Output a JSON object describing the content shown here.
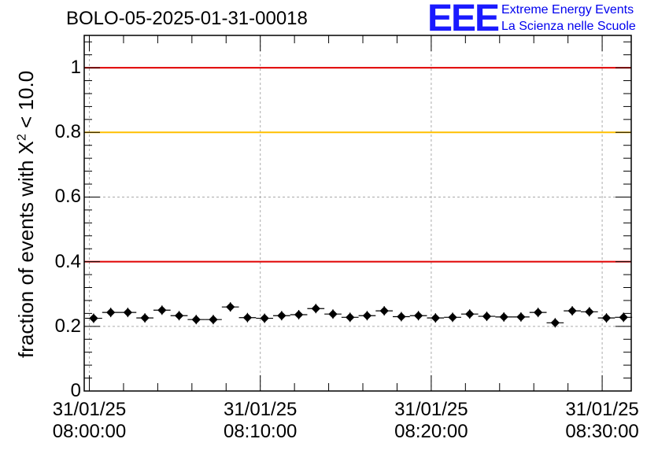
{
  "chart_data": {
    "type": "scatter",
    "title": "BOLO-05-2025-01-31-00018",
    "ylabel": "fraction of events with X^2 < 10.0",
    "ylabel_parts": {
      "prefix": "fraction of events with ",
      "symbol": "X",
      "sup": "2",
      "suffix": " < 10.0"
    },
    "xlabel": "",
    "xlim_minutes": [
      -0.3,
      31.7
    ],
    "ylim": [
      0,
      1.1
    ],
    "yticks": [
      {
        "value": 0,
        "label": "0"
      },
      {
        "value": 0.2,
        "label": "0.2"
      },
      {
        "value": 0.4,
        "label": "0.4"
      },
      {
        "value": 0.6,
        "label": "0.6"
      },
      {
        "value": 0.8,
        "label": "0.8"
      },
      {
        "value": 1,
        "label": "1"
      }
    ],
    "xticks": [
      {
        "time": "08:00:00",
        "date": "31/01/25"
      },
      {
        "time": "08:10:00",
        "date": "31/01/25"
      },
      {
        "time": "08:20:00",
        "date": "31/01/25"
      },
      {
        "time": "08:30:00",
        "date": "31/01/25"
      }
    ],
    "grid": true,
    "reference_lines": [
      {
        "y": 1.0,
        "color": "#e00000"
      },
      {
        "y": 0.8,
        "color": "#ffc000"
      },
      {
        "y": 0.4,
        "color": "#e00000"
      }
    ],
    "series": [
      {
        "marker_color": "#000000",
        "points": [
          {
            "time": "08:00:15",
            "y": 0.225
          },
          {
            "time": "08:01:15",
            "y": 0.243
          },
          {
            "time": "08:02:15",
            "y": 0.243
          },
          {
            "time": "08:03:15",
            "y": 0.226
          },
          {
            "time": "08:04:15",
            "y": 0.25
          },
          {
            "time": "08:05:15",
            "y": 0.233
          },
          {
            "time": "08:06:15",
            "y": 0.221
          },
          {
            "time": "08:07:15",
            "y": 0.221
          },
          {
            "time": "08:08:15",
            "y": 0.26
          },
          {
            "time": "08:09:15",
            "y": 0.227
          },
          {
            "time": "08:10:15",
            "y": 0.225
          },
          {
            "time": "08:11:15",
            "y": 0.233
          },
          {
            "time": "08:12:15",
            "y": 0.236
          },
          {
            "time": "08:13:15",
            "y": 0.255
          },
          {
            "time": "08:14:15",
            "y": 0.238
          },
          {
            "time": "08:15:15",
            "y": 0.228
          },
          {
            "time": "08:16:15",
            "y": 0.233
          },
          {
            "time": "08:17:15",
            "y": 0.248
          },
          {
            "time": "08:18:15",
            "y": 0.23
          },
          {
            "time": "08:19:15",
            "y": 0.233
          },
          {
            "time": "08:20:15",
            "y": 0.226
          },
          {
            "time": "08:21:15",
            "y": 0.228
          },
          {
            "time": "08:22:15",
            "y": 0.238
          },
          {
            "time": "08:23:15",
            "y": 0.231
          },
          {
            "time": "08:24:15",
            "y": 0.229
          },
          {
            "time": "08:25:15",
            "y": 0.229
          },
          {
            "time": "08:26:15",
            "y": 0.243
          },
          {
            "time": "08:27:15",
            "y": 0.211
          },
          {
            "time": "08:28:15",
            "y": 0.248
          },
          {
            "time": "08:29:15",
            "y": 0.245
          },
          {
            "time": "08:30:15",
            "y": 0.226
          },
          {
            "time": "08:31:15",
            "y": 0.228
          }
        ]
      }
    ]
  },
  "logo": {
    "letters": "EEE",
    "line1": "Extreme Energy Events",
    "line2": "La Scienza nelle Scuole",
    "color": "#1a1aff"
  }
}
